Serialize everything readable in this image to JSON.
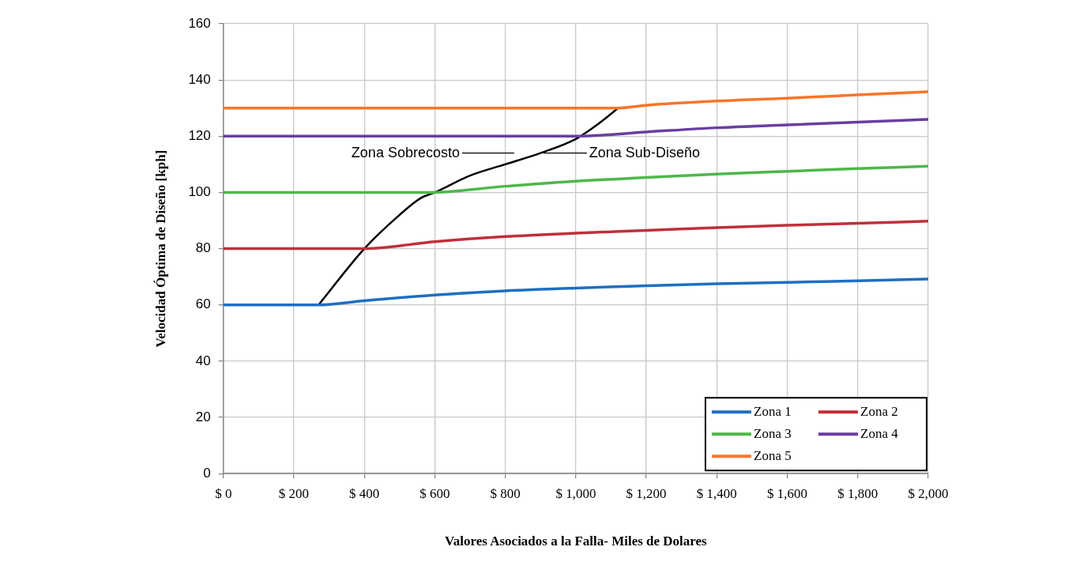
{
  "chart_data": {
    "type": "line",
    "xlabel": "Valores Asociados a la Falla- Miles de Dolares",
    "ylabel": "Velocidad Óptima de Diseño [kph]",
    "xlim": [
      0,
      2000
    ],
    "xticks": [
      {
        "value": 0,
        "label": "$ 0"
      },
      {
        "value": 200,
        "label": "$ 200"
      },
      {
        "value": 400,
        "label": "$ 400"
      },
      {
        "value": 600,
        "label": "$ 600"
      },
      {
        "value": 800,
        "label": "$ 800"
      },
      {
        "value": 1000,
        "label": "$ 1,000"
      },
      {
        "value": 1200,
        "label": "$ 1,200"
      },
      {
        "value": 1400,
        "label": "$ 1,400"
      },
      {
        "value": 1600,
        "label": "$ 1,600"
      },
      {
        "value": 1800,
        "label": "$ 1,800"
      },
      {
        "value": 2000,
        "label": "$ 2,000"
      }
    ],
    "ylim": [
      0,
      160
    ],
    "yticks": [
      0,
      20,
      40,
      60,
      80,
      100,
      120,
      140,
      160
    ],
    "grid": true,
    "legend": "bottom right",
    "marker": "none",
    "line_style": "solid",
    "series": [
      {
        "name": "Zona 1",
        "color": "#1f6fc1",
        "x": [
          0,
          270,
          400,
          600,
          800,
          1000,
          1200,
          1400,
          1600,
          1800,
          2000
        ],
        "values": [
          60,
          60,
          61.5,
          63.5,
          65,
          66,
          66.8,
          67.5,
          68,
          68.6,
          69.2
        ]
      },
      {
        "name": "Zona 2",
        "color": "#c0303a",
        "x": [
          0,
          400,
          600,
          800,
          1000,
          1200,
          1400,
          1600,
          1800,
          2000
        ],
        "values": [
          80,
          80,
          82.5,
          84.3,
          85.5,
          86.5,
          87.5,
          88.3,
          89,
          89.8
        ]
      },
      {
        "name": "Zona 3",
        "color": "#4db848",
        "x": [
          0,
          580,
          800,
          1000,
          1200,
          1400,
          1600,
          1800,
          2000
        ],
        "values": [
          100,
          100,
          102.2,
          104,
          105.3,
          106.5,
          107.5,
          108.5,
          109.3
        ]
      },
      {
        "name": "Zona 4",
        "color": "#6a3ea1",
        "x": [
          0,
          1000,
          1200,
          1400,
          1600,
          1800,
          2000
        ],
        "values": [
          120,
          120,
          121.5,
          123,
          124,
          125,
          126
        ]
      },
      {
        "name": "Zona 5",
        "color": "#f7762a",
        "x": [
          0,
          1120,
          1200,
          1400,
          1600,
          1800,
          2000
        ],
        "values": [
          130,
          130,
          131,
          132.5,
          133.5,
          134.7,
          135.8
        ]
      },
      {
        "color": "#000000",
        "x": [
          270,
          400,
          500,
          560,
          600,
          700,
          800,
          900,
          1000,
          1060,
          1120
        ],
        "values": [
          60,
          80,
          92,
          98,
          100,
          106,
          110,
          114,
          119,
          124,
          130
        ]
      }
    ],
    "annotations": [
      "Zona Sobrecosto",
      "Zona Sub-Diseño"
    ]
  }
}
